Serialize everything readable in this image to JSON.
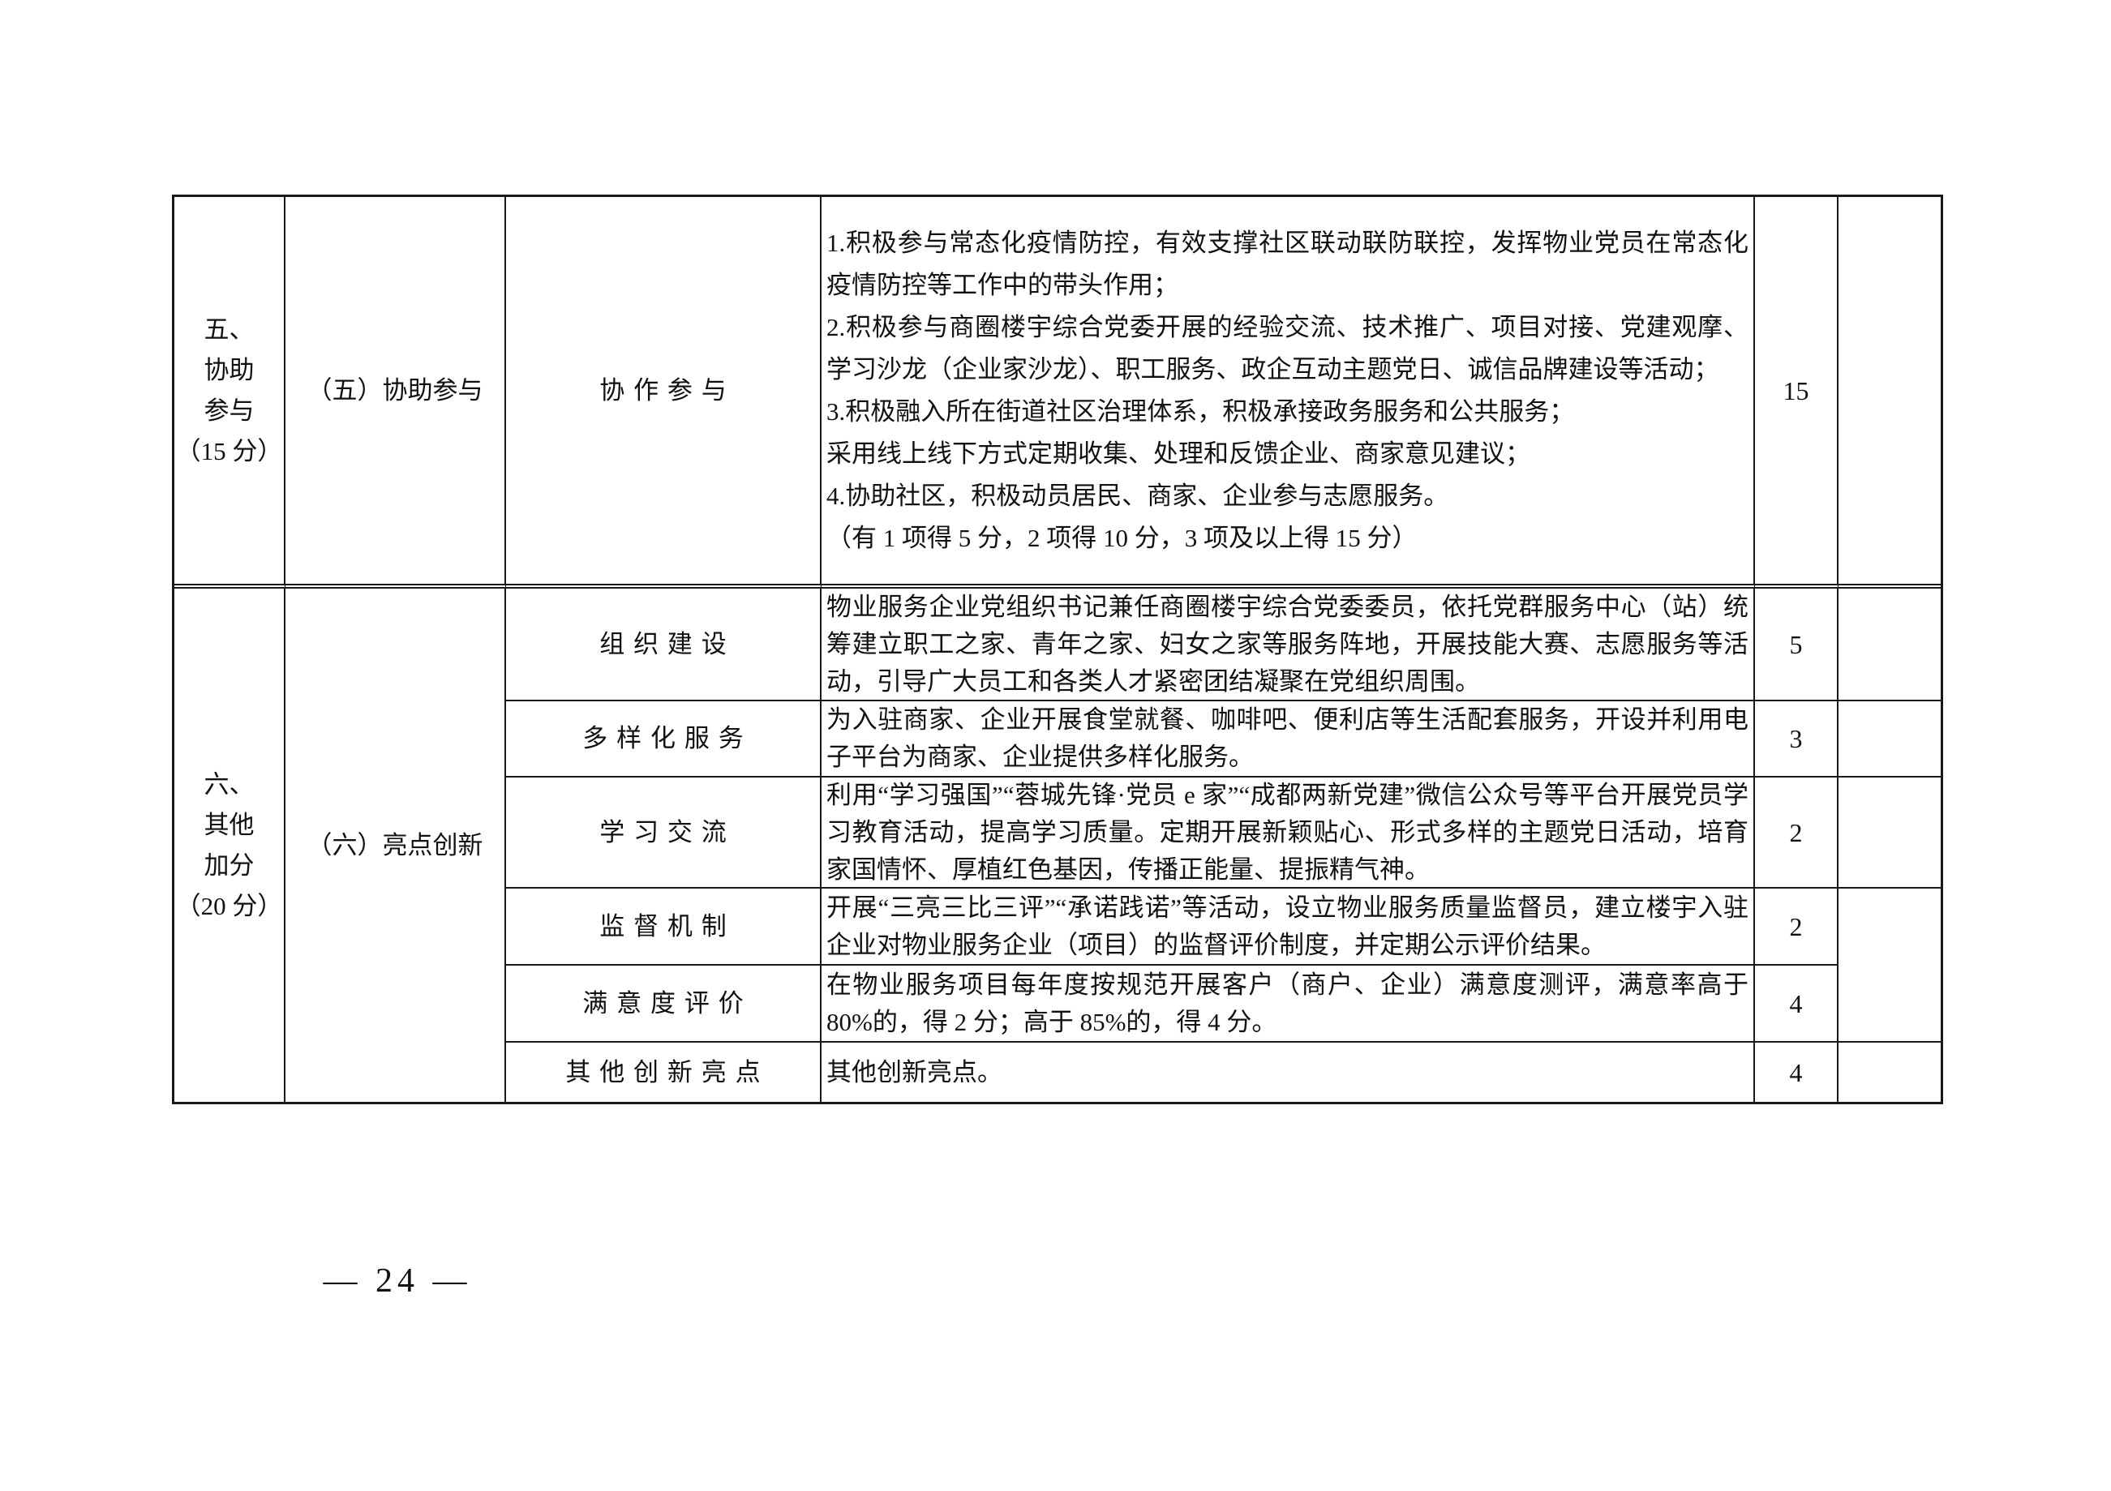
{
  "page": {
    "number_label": "— 24 —"
  },
  "table": {
    "sections": [
      {
        "category": "五、\n协助\n参与\n（15 分）",
        "subcategory": "（五）协助参与",
        "items": [
          {
            "name": "协作参与",
            "criteria": "1.积极参与常态化疫情防控，有效支撑社区联动联防联控，发挥物业党员在常态化疫情防控等工作中的带头作用；\n2.积极参与商圈楼宇综合党委开展的经验交流、技术推广、项目对接、党建观摩、学习沙龙（企业家沙龙）、职工服务、政企互动主题党日、诚信品牌建设等活动；\n3.积极融入所在街道社区治理体系，积极承接政务服务和公共服务；\n采用线上线下方式定期收集、处理和反馈企业、商家意见建议；\n4.协助社区，积极动员居民、商家、企业参与志愿服务。\n（有 1 项得 5 分，2 项得 10 分，3 项及以上得 15 分）",
            "score": "15"
          }
        ]
      },
      {
        "category": "六、\n其他\n加分\n（20 分）",
        "subcategory": "（六）亮点创新",
        "items": [
          {
            "name": "组织建设",
            "criteria": "物业服务企业党组织书记兼任商圈楼宇综合党委委员，依托党群服务中心（站）统筹建立职工之家、青年之家、妇女之家等服务阵地，开展技能大赛、志愿服务等活动，引导广大员工和各类人才紧密团结凝聚在党组织周围。",
            "score": "5"
          },
          {
            "name": "多样化服务",
            "criteria": "为入驻商家、企业开展食堂就餐、咖啡吧、便利店等生活配套服务，开设并利用电子平台为商家、企业提供多样化服务。",
            "score": "3"
          },
          {
            "name": "学习交流",
            "criteria": "利用“学习强国”“蓉城先锋·党员 e 家”“成都两新党建”微信公众号等平台开展党员学习教育活动，提高学习质量。定期开展新颖贴心、形式多样的主题党日活动，培育家国情怀、厚植红色基因，传播正能量、提振精气神。",
            "score": "2"
          },
          {
            "name": "监督机制",
            "criteria": "开展“三亮三比三评”“承诺践诺”等活动，设立物业服务质量监督员，建立楼宇入驻企业对物业服务企业（项目）的监督评价制度，并定期公示评价结果。",
            "score": "2"
          },
          {
            "name": "满意度评价",
            "criteria": "在物业服务项目每年度按规范开展客户（商户、企业）满意度测评，满意率高于 80%的，得 2 分；高于 85%的，得 4 分。",
            "score": "4"
          },
          {
            "name": "其他创新亮点",
            "criteria": "其他创新亮点。",
            "score": "4"
          }
        ]
      }
    ]
  }
}
